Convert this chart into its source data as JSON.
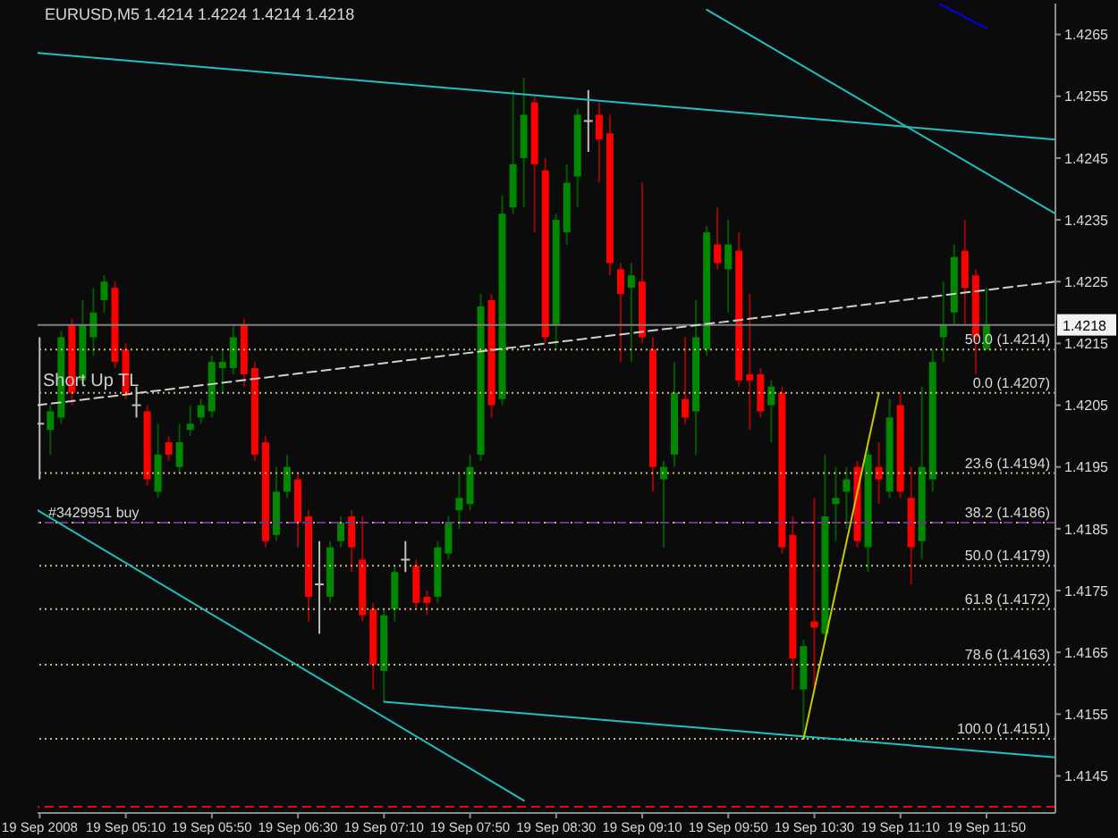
{
  "chart_data": {
    "type": "candlestick",
    "title": "EURUSD,M5 1.4214 1.4224 1.4214 1.4218",
    "x": [
      "2008-09-19T04:30",
      "2008-09-19T04:35",
      "2008-09-19T04:40",
      "2008-09-19T04:45",
      "2008-09-19T04:50",
      "2008-09-19T04:55",
      "2008-09-19T05:00",
      "2008-09-19T05:05",
      "2008-09-19T05:10",
      "2008-09-19T05:15",
      "2008-09-19T05:20",
      "2008-09-19T05:25",
      "2008-09-19T05:30",
      "2008-09-19T05:35",
      "2008-09-19T05:40",
      "2008-09-19T05:45",
      "2008-09-19T05:50",
      "2008-09-19T05:55",
      "2008-09-19T06:00",
      "2008-09-19T06:05",
      "2008-09-19T06:10",
      "2008-09-19T06:15",
      "2008-09-19T06:20",
      "2008-09-19T06:25",
      "2008-09-19T06:30",
      "2008-09-19T06:35",
      "2008-09-19T06:40",
      "2008-09-19T06:45",
      "2008-09-19T06:50",
      "2008-09-19T06:55",
      "2008-09-19T07:00",
      "2008-09-19T07:05",
      "2008-09-19T07:10",
      "2008-09-19T07:15",
      "2008-09-19T07:20",
      "2008-09-19T07:25",
      "2008-09-19T07:30",
      "2008-09-19T07:35",
      "2008-09-19T07:40",
      "2008-09-19T07:45",
      "2008-09-19T07:50",
      "2008-09-19T07:55",
      "2008-09-19T08:00",
      "2008-09-19T08:05",
      "2008-09-19T08:10",
      "2008-09-19T08:15",
      "2008-09-19T08:20",
      "2008-09-19T08:25",
      "2008-09-19T08:30",
      "2008-09-19T08:35",
      "2008-09-19T08:40",
      "2008-09-19T08:45",
      "2008-09-19T08:50",
      "2008-09-19T08:55",
      "2008-09-19T09:00",
      "2008-09-19T09:05",
      "2008-09-19T09:10",
      "2008-09-19T09:15",
      "2008-09-19T09:20",
      "2008-09-19T09:25",
      "2008-09-19T09:30",
      "2008-09-19T09:35",
      "2008-09-19T09:40",
      "2008-09-19T09:45",
      "2008-09-19T09:50",
      "2008-09-19T09:55",
      "2008-09-19T10:00",
      "2008-09-19T10:05",
      "2008-09-19T10:10",
      "2008-09-19T10:15",
      "2008-09-19T10:20",
      "2008-09-19T10:25",
      "2008-09-19T10:30",
      "2008-09-19T10:35",
      "2008-09-19T10:40",
      "2008-09-19T10:45",
      "2008-09-19T10:50",
      "2008-09-19T10:55",
      "2008-09-19T11:00",
      "2008-09-19T11:05",
      "2008-09-19T11:10",
      "2008-09-19T11:15",
      "2008-09-19T11:20",
      "2008-09-19T11:25",
      "2008-09-19T11:30",
      "2008-09-19T11:35",
      "2008-09-19T11:40",
      "2008-09-19T11:45",
      "2008-09-19T11:50"
    ],
    "ohlc": [
      [
        1.4202,
        1.4216,
        1.4193,
        1.4202
      ],
      [
        1.4201,
        1.4205,
        1.4197,
        1.4204
      ],
      [
        1.4203,
        1.4217,
        1.4202,
        1.4216
      ],
      [
        1.4218,
        1.4219,
        1.4205,
        1.4207
      ],
      [
        1.4209,
        1.4222,
        1.4208,
        1.4218
      ],
      [
        1.4216,
        1.4224,
        1.4213,
        1.422
      ],
      [
        1.4222,
        1.4226,
        1.422,
        1.4225
      ],
      [
        1.4224,
        1.4225,
        1.4211,
        1.4212
      ],
      [
        1.4214,
        1.4215,
        1.4206,
        1.4207
      ],
      [
        1.4205,
        1.4208,
        1.4203,
        1.4205
      ],
      [
        1.4204,
        1.4205,
        1.4192,
        1.4193
      ],
      [
        1.4191,
        1.4202,
        1.419,
        1.4197
      ],
      [
        1.4199,
        1.42,
        1.4196,
        1.4197
      ],
      [
        1.4195,
        1.4202,
        1.4194,
        1.4199
      ],
      [
        1.4201,
        1.4205,
        1.42,
        1.4202
      ],
      [
        1.4203,
        1.4206,
        1.4202,
        1.4205
      ],
      [
        1.4204,
        1.4213,
        1.4203,
        1.4212
      ],
      [
        1.4211,
        1.4214,
        1.4207,
        1.4212
      ],
      [
        1.4211,
        1.4218,
        1.421,
        1.4216
      ],
      [
        1.4218,
        1.4219,
        1.4208,
        1.421
      ],
      [
        1.4211,
        1.4212,
        1.4196,
        1.4197
      ],
      [
        1.4199,
        1.42,
        1.4182,
        1.4183
      ],
      [
        1.4184,
        1.4195,
        1.4183,
        1.4191
      ],
      [
        1.4191,
        1.4197,
        1.419,
        1.4195
      ],
      [
        1.4193,
        1.4194,
        1.4182,
        1.4186
      ],
      [
        1.4187,
        1.4188,
        1.417,
        1.4174
      ],
      [
        1.4176,
        1.4183,
        1.4168,
        1.4176
      ],
      [
        1.4174,
        1.4183,
        1.4173,
        1.4182
      ],
      [
        1.4183,
        1.4187,
        1.4182,
        1.4186
      ],
      [
        1.4187,
        1.4188,
        1.4178,
        1.4182
      ],
      [
        1.418,
        1.4187,
        1.417,
        1.4171
      ],
      [
        1.4172,
        1.4173,
        1.4159,
        1.4163
      ],
      [
        1.4162,
        1.4172,
        1.4157,
        1.4171
      ],
      [
        1.4172,
        1.4179,
        1.417,
        1.4178
      ],
      [
        1.418,
        1.4183,
        1.4178,
        1.418
      ],
      [
        1.4179,
        1.418,
        1.4172,
        1.4173
      ],
      [
        1.4174,
        1.4175,
        1.4171,
        1.4173
      ],
      [
        1.4174,
        1.4183,
        1.4173,
        1.4182
      ],
      [
        1.4181,
        1.4187,
        1.418,
        1.4186
      ],
      [
        1.4188,
        1.4194,
        1.4185,
        1.419
      ],
      [
        1.4189,
        1.4197,
        1.4188,
        1.4195
      ],
      [
        1.4197,
        1.4223,
        1.4196,
        1.4221
      ],
      [
        1.4222,
        1.4223,
        1.4203,
        1.4205
      ],
      [
        1.4206,
        1.4239,
        1.4205,
        1.4236
      ],
      [
        1.4237,
        1.4256,
        1.4236,
        1.4244
      ],
      [
        1.4245,
        1.4258,
        1.4237,
        1.4252
      ],
      [
        1.4254,
        1.4255,
        1.4233,
        1.4244
      ],
      [
        1.4243,
        1.4245,
        1.4215,
        1.4216
      ],
      [
        1.4218,
        1.4236,
        1.4214,
        1.4235
      ],
      [
        1.4233,
        1.4244,
        1.4231,
        1.4241
      ],
      [
        1.4242,
        1.4253,
        1.4237,
        1.4252
      ],
      [
        1.4251,
        1.4256,
        1.4246,
        1.4251
      ],
      [
        1.4252,
        1.4254,
        1.4241,
        1.4248
      ],
      [
        1.4249,
        1.4252,
        1.4226,
        1.4228
      ],
      [
        1.4227,
        1.4228,
        1.4212,
        1.4223
      ],
      [
        1.4224,
        1.4228,
        1.4212,
        1.4226
      ],
      [
        1.4225,
        1.4241,
        1.4215,
        1.4216
      ],
      [
        1.4214,
        1.4216,
        1.4191,
        1.4195
      ],
      [
        1.4193,
        1.4196,
        1.4182,
        1.4195
      ],
      [
        1.4197,
        1.4212,
        1.4195,
        1.4207
      ],
      [
        1.4206,
        1.4216,
        1.4202,
        1.4203
      ],
      [
        1.4204,
        1.4222,
        1.4197,
        1.4216
      ],
      [
        1.4214,
        1.4234,
        1.4213,
        1.4233
      ],
      [
        1.4231,
        1.4237,
        1.4227,
        1.4228
      ],
      [
        1.4227,
        1.4235,
        1.422,
        1.4231
      ],
      [
        1.423,
        1.4233,
        1.4208,
        1.4209
      ],
      [
        1.421,
        1.4223,
        1.4201,
        1.4209
      ],
      [
        1.421,
        1.4211,
        1.4203,
        1.4204
      ],
      [
        1.4205,
        1.4209,
        1.4199,
        1.4208
      ],
      [
        1.4207,
        1.4208,
        1.4181,
        1.4182
      ],
      [
        1.4184,
        1.4187,
        1.4159,
        1.4164
      ],
      [
        1.4159,
        1.4167,
        1.4151,
        1.4166
      ],
      [
        1.417,
        1.419,
        1.4159,
        1.4169
      ],
      [
        1.4168,
        1.4197,
        1.4167,
        1.4187
      ],
      [
        1.4189,
        1.4195,
        1.4183,
        1.419
      ],
      [
        1.4191,
        1.4195,
        1.4185,
        1.4193
      ],
      [
        1.4195,
        1.4196,
        1.4182,
        1.4183
      ],
      [
        1.4182,
        1.4198,
        1.4178,
        1.4197
      ],
      [
        1.4195,
        1.4199,
        1.4189,
        1.4193
      ],
      [
        1.4191,
        1.4206,
        1.419,
        1.4203
      ],
      [
        1.4205,
        1.4207,
        1.419,
        1.4191
      ],
      [
        1.419,
        1.4195,
        1.4176,
        1.4182
      ],
      [
        1.4183,
        1.4208,
        1.418,
        1.4195
      ],
      [
        1.4193,
        1.4214,
        1.4191,
        1.4212
      ],
      [
        1.4216,
        1.4225,
        1.4212,
        1.4218
      ],
      [
        1.422,
        1.4231,
        1.4218,
        1.4229
      ],
      [
        1.423,
        1.4235,
        1.4218,
        1.4224
      ],
      [
        1.4226,
        1.4227,
        1.421,
        1.4216
      ],
      [
        1.4214,
        1.4224,
        1.4214,
        1.4218
      ]
    ],
    "colors": [
      "#c0c0c0",
      "#008800",
      "#008800",
      "#ff0000",
      "#008800",
      "#008800",
      "#008800",
      "#ff0000",
      "#ff0000",
      "#c0c0c0",
      "#ff0000",
      "#008800",
      "#ff0000",
      "#008800",
      "#008800",
      "#008800",
      "#008800",
      "#008800",
      "#008800",
      "#ff0000",
      "#ff0000",
      "#ff0000",
      "#008800",
      "#008800",
      "#ff0000",
      "#ff0000",
      "#c0c0c0",
      "#008800",
      "#008800",
      "#ff0000",
      "#ff0000",
      "#ff0000",
      "#008800",
      "#008800",
      "#c0c0c0",
      "#ff0000",
      "#ff0000",
      "#008800",
      "#008800",
      "#008800",
      "#008800",
      "#008800",
      "#ff0000",
      "#008800",
      "#008800",
      "#008800",
      "#ff0000",
      "#ff0000",
      "#008800",
      "#008800",
      "#008800",
      "#c0c0c0",
      "#ff0000",
      "#ff0000",
      "#ff0000",
      "#008800",
      "#ff0000",
      "#ff0000",
      "#008800",
      "#008800",
      "#ff0000",
      "#008800",
      "#008800",
      "#ff0000",
      "#008800",
      "#ff0000",
      "#ff0000",
      "#ff0000",
      "#008800",
      "#ff0000",
      "#ff0000",
      "#008800",
      "#ff0000",
      "#008800",
      "#008800",
      "#008800",
      "#ff0000",
      "#008800",
      "#ff0000",
      "#008800",
      "#ff0000",
      "#ff0000",
      "#008800",
      "#008800",
      "#008800",
      "#008800",
      "#ff0000",
      "#ff0000",
      "#008800"
    ],
    "series": [
      {
        "type": "line",
        "x": [
          "2008-09-19T04:29",
          "2008-09-19T12:22"
        ],
        "values": [
          1.4262,
          1.4248
        ],
        "color": "#20c0c0"
      },
      {
        "type": "line",
        "x": [
          "2008-09-19T09:40",
          "2008-09-19T12:22"
        ],
        "values": [
          1.4269,
          1.4236
        ],
        "color": "#20c0c0"
      },
      {
        "type": "line",
        "x": [
          "2008-09-19T07:10",
          "2008-09-19T12:22"
        ],
        "values": [
          1.4157,
          1.4148
        ],
        "color": "#20c0c0"
      },
      {
        "type": "line",
        "x": [
          "2008-09-19T04:29",
          "2008-09-19T08:15"
        ],
        "values": [
          1.4188,
          1.4141
        ],
        "color": "#20c0c0"
      },
      {
        "type": "line",
        "x": [
          "2008-09-19T11:28",
          "2008-09-19T11:50"
        ],
        "values": [
          1.427,
          1.4266
        ],
        "color": "#0000ee"
      },
      {
        "type": "line",
        "x": [
          "2008-09-19T10:25",
          "2008-09-19T11:00"
        ],
        "values": [
          1.4151,
          1.4207
        ],
        "color": "#c8c800"
      },
      {
        "type": "line",
        "name": "Short Up TL",
        "x": [
          "2008-09-19T04:29",
          "2008-09-19T12:22"
        ],
        "values": [
          1.4205,
          1.4225
        ],
        "color": "#d0d0d0",
        "line_style": "dashed"
      }
    ],
    "ref_lines": [
      {
        "axis": "y",
        "value": 1.4218,
        "label": "1.4218",
        "color": "#808080",
        "line_style": "solid"
      },
      {
        "axis": "y",
        "value": 1.4214,
        "label": "50.0 (1.4214)",
        "color": "#c8b88c",
        "line_style": "dotted"
      },
      {
        "axis": "y",
        "value": 1.4207,
        "label": "0.0 (1.4207)",
        "color": "#c8b88c",
        "line_style": "dotted"
      },
      {
        "axis": "y",
        "value": 1.4194,
        "label": "23.6 (1.4194)",
        "color": "#c8b88c",
        "line_style": "dotted"
      },
      {
        "axis": "y",
        "value": 1.4186,
        "label": "38.2 (1.4186)",
        "color": "#c8b88c",
        "line_style": "dotted"
      },
      {
        "axis": "y",
        "value": 1.4179,
        "label": "50.0 (1.4179)",
        "color": "#c8b88c",
        "line_style": "dotted"
      },
      {
        "axis": "y",
        "value": 1.4172,
        "label": "61.8 (1.4172)",
        "color": "#c8b88c",
        "line_style": "dotted"
      },
      {
        "axis": "y",
        "value": 1.4163,
        "label": "78.6 (1.4163)",
        "color": "#c8b88c",
        "line_style": "dotted"
      },
      {
        "axis": "y",
        "value": 1.4151,
        "label": "100.0 (1.4151)",
        "color": "#c8b88c",
        "line_style": "dotted"
      },
      {
        "axis": "y",
        "value": 1.4186,
        "label": "#3429951 buy",
        "color": "#6a3a8a",
        "line_style": "dashed"
      },
      {
        "axis": "y",
        "value": 1.414,
        "color": "#ff0000",
        "line_style": "dashed"
      }
    ],
    "xlim": [
      "2008-09-19T04:29",
      "2008-09-19T12:22"
    ],
    "xticks": [
      {
        "value": "2008-09-19T04:30",
        "label": "19 Sep 2008"
      },
      {
        "value": "2008-09-19T05:10",
        "label": "19 Sep 05:10"
      },
      {
        "value": "2008-09-19T05:50",
        "label": "19 Sep 05:50"
      },
      {
        "value": "2008-09-19T06:30",
        "label": "19 Sep 06:30"
      },
      {
        "value": "2008-09-19T07:10",
        "label": "19 Sep 07:10"
      },
      {
        "value": "2008-09-19T07:50",
        "label": "19 Sep 07:50"
      },
      {
        "value": "2008-09-19T08:30",
        "label": "19 Sep 08:30"
      },
      {
        "value": "2008-09-19T09:10",
        "label": "19 Sep 09:10"
      },
      {
        "value": "2008-09-19T09:50",
        "label": "19 Sep 09:50"
      },
      {
        "value": "2008-09-19T10:30",
        "label": "19 Sep 10:30"
      },
      {
        "value": "2008-09-19T11:10",
        "label": "19 Sep 11:10"
      },
      {
        "value": "2008-09-19T11:50",
        "label": "19 Sep 11:50"
      }
    ],
    "ylim": [
      1.4139,
      1.427
    ],
    "yticks": [
      1.4145,
      1.4155,
      1.4165,
      1.4175,
      1.4185,
      1.4195,
      1.4205,
      1.4215,
      1.4225,
      1.4235,
      1.4245,
      1.4255,
      1.4265
    ],
    "marker": "none"
  }
}
